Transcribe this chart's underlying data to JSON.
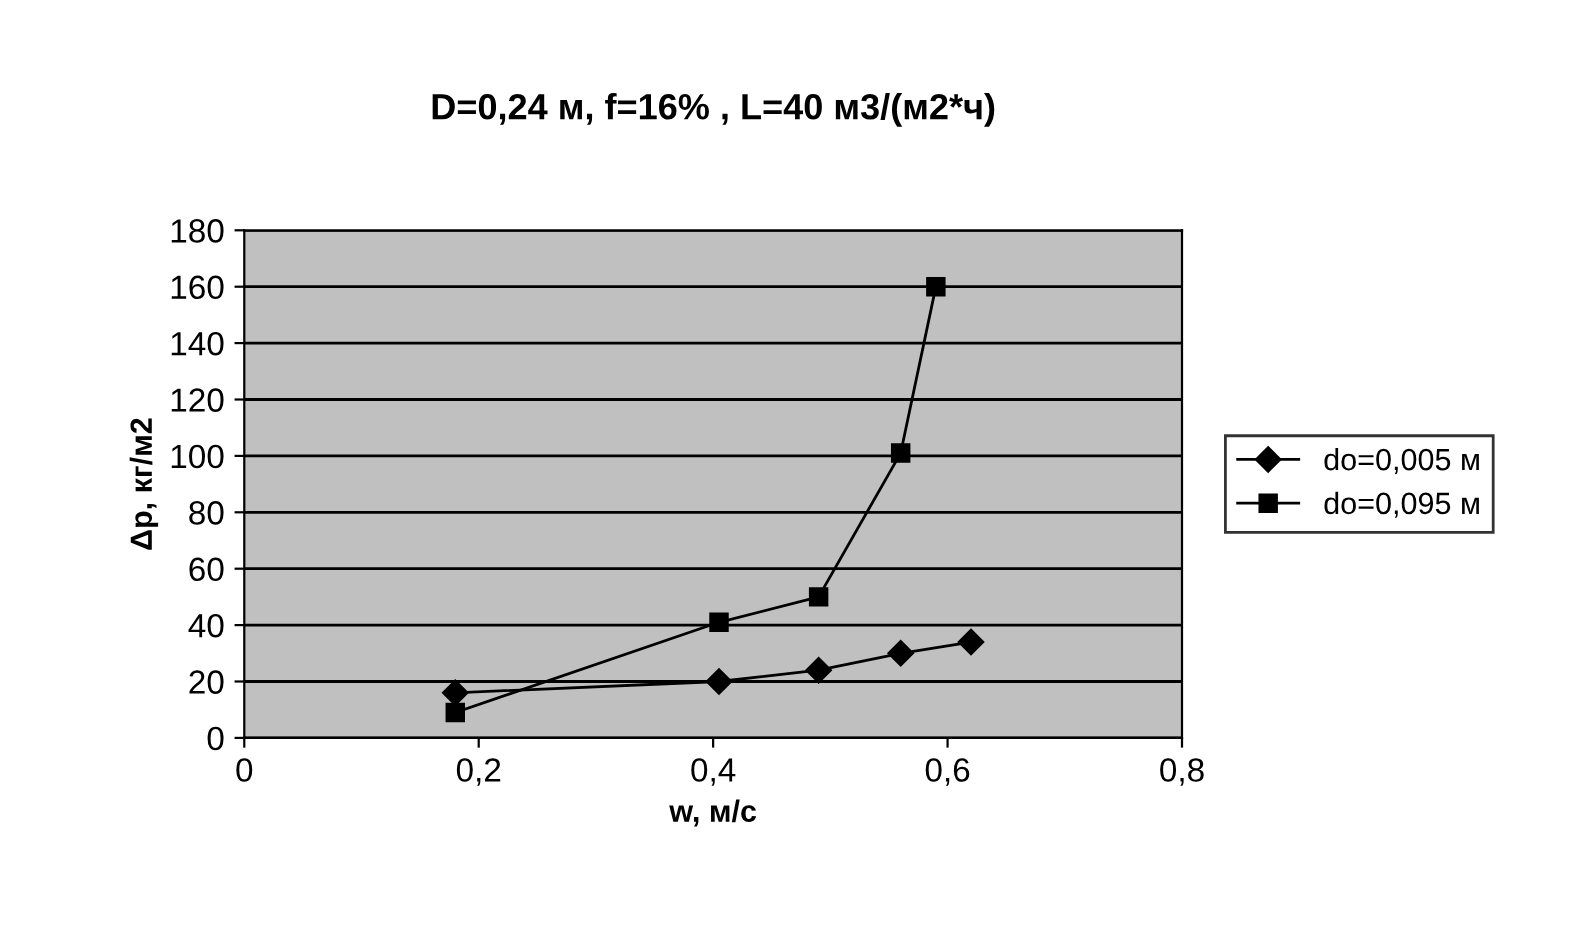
{
  "chart_data": {
    "type": "line",
    "title": "D=0,24 м, f=16% , L=40 м3/(м2*ч)",
    "xlabel": "w, м/с",
    "ylabel": "Δp, кг/м2",
    "xlim": [
      0,
      0.8
    ],
    "xticks": [
      {
        "value": 0,
        "label": "0"
      },
      {
        "value": 0.2,
        "label": "0,2"
      },
      {
        "value": 0.4,
        "label": "0,4"
      },
      {
        "value": 0.6,
        "label": "0,6"
      },
      {
        "value": 0.8,
        "label": "0,8"
      }
    ],
    "ylim": [
      0,
      180
    ],
    "yticks": [
      0,
      20,
      40,
      60,
      80,
      100,
      120,
      140,
      160,
      180
    ],
    "grid": "y",
    "legend": "right",
    "series": [
      {
        "name": "do=0,005 м",
        "color": "#000000",
        "marker": "diamond",
        "x": [
          0.18,
          0.405,
          0.49,
          0.56,
          0.62
        ],
        "values": [
          16,
          20,
          24,
          30,
          34
        ]
      },
      {
        "name": "do=0,095 м",
        "color": "#000000",
        "marker": "square",
        "x": [
          0.18,
          0.405,
          0.49,
          0.56,
          0.59
        ],
        "values": [
          9,
          41,
          50,
          101,
          160
        ]
      }
    ]
  }
}
